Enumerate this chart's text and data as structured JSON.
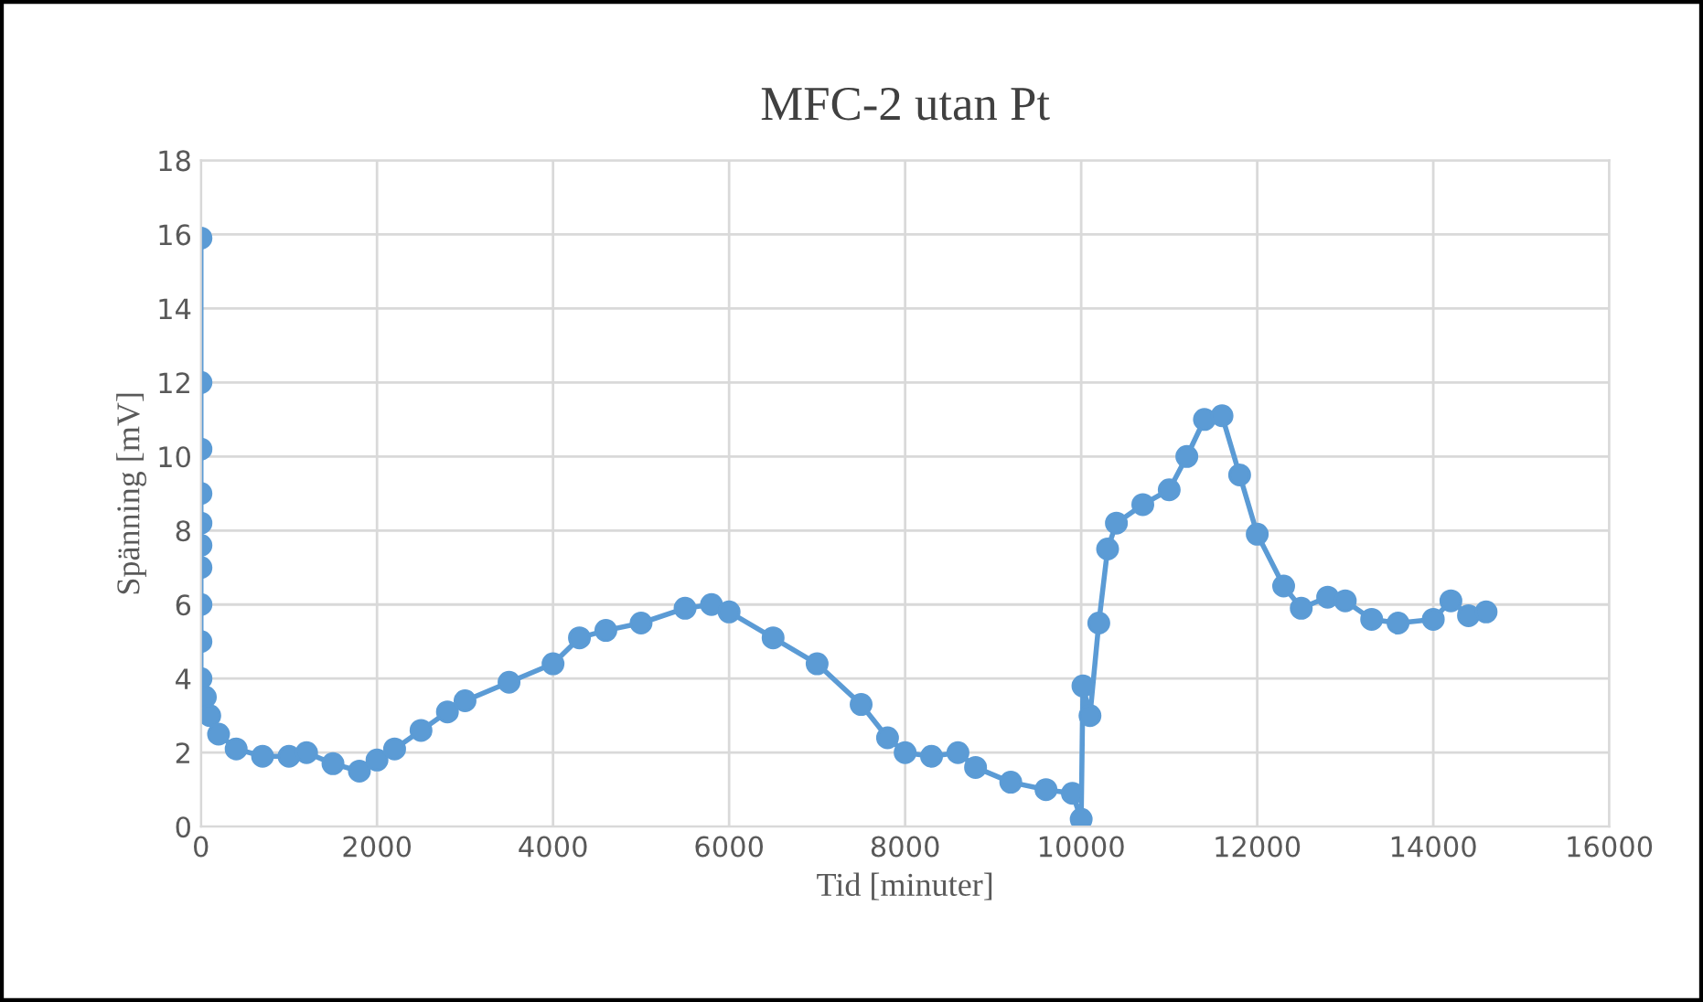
{
  "chart_data": {
    "type": "line",
    "title": "MFC-2 utan Pt",
    "xlabel": "Tid [minuter]",
    "ylabel": "Spänning [mV]",
    "x": [
      0,
      0,
      0,
      0,
      0,
      0,
      0,
      0,
      0,
      0,
      50,
      100,
      200,
      400,
      700,
      1000,
      1200,
      1500,
      1800,
      2000,
      2200,
      2500,
      2800,
      3000,
      3500,
      4000,
      4300,
      4600,
      5000,
      5500,
      5800,
      6000,
      6500,
      7000,
      7500,
      7800,
      8000,
      8300,
      8600,
      8800,
      9200,
      9600,
      9900,
      10000,
      10020,
      10100,
      10200,
      10300,
      10400,
      10700,
      11000,
      11200,
      11400,
      11600,
      11800,
      12000,
      12300,
      12500,
      12800,
      13000,
      13300,
      13600,
      14000,
      14200,
      14400,
      14600
    ],
    "series": [
      {
        "color": "#5b9bd5",
        "values": [
          15.9,
          12.0,
          10.2,
          9.0,
          8.2,
          7.6,
          7.0,
          6.0,
          5.0,
          4.0,
          3.5,
          3.0,
          2.5,
          2.1,
          1.9,
          1.9,
          2.0,
          1.7,
          1.5,
          1.8,
          2.1,
          2.6,
          3.1,
          3.4,
          3.9,
          4.4,
          5.1,
          5.3,
          5.5,
          5.9,
          6.0,
          5.8,
          5.1,
          4.4,
          3.3,
          2.4,
          2.0,
          1.9,
          2.0,
          1.6,
          1.2,
          1.0,
          0.9,
          0.2,
          3.8,
          3.0,
          5.5,
          7.5,
          8.2,
          8.7,
          9.1,
          10.0,
          11.0,
          11.1,
          9.5,
          7.9,
          6.5,
          5.9,
          6.2,
          6.1,
          5.6,
          5.5,
          5.6,
          6.1,
          5.7,
          5.8
        ]
      }
    ],
    "xlim": [
      0,
      16000
    ],
    "xticks": [
      0,
      2000,
      4000,
      6000,
      8000,
      10000,
      12000,
      14000,
      16000
    ],
    "ylim": [
      0,
      18
    ],
    "yticks": [
      0,
      2,
      4,
      6,
      8,
      10,
      12,
      14,
      16,
      18
    ],
    "grid": true,
    "marker": "circle",
    "line_style": "solid"
  }
}
